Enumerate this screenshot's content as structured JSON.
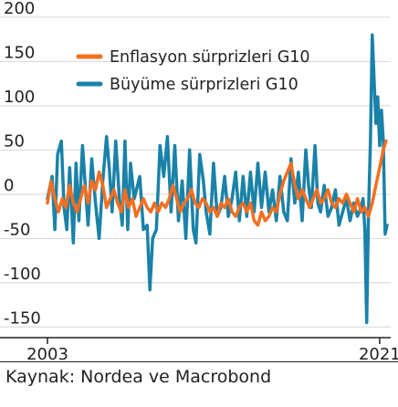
{
  "chart_data": {
    "type": "line",
    "title": "",
    "xlabel": "",
    "ylabel": "",
    "x_range": [
      2003.0,
      2021.6
    ],
    "x_ticks": [
      "2003",
      "2021"
    ],
    "ylim": [
      -160,
      205
    ],
    "y_ticks": [
      "200",
      "150",
      "100",
      "50",
      "0",
      "-50",
      "-100",
      "-150"
    ],
    "grid": "horizontal",
    "legend_position": "top-center",
    "colors": {
      "Enflasyon sürprizleri G10": "#f36f21",
      "Büyüme sürprizleri G10": "#1a82a8"
    },
    "series": [
      {
        "name": "Büyüme sürprizleri G10",
        "points": [
          [
            2003.0,
            -5
          ],
          [
            2003.25,
            20
          ],
          [
            2003.4,
            -40
          ],
          [
            2003.55,
            45
          ],
          [
            2003.75,
            60
          ],
          [
            2003.9,
            -15
          ],
          [
            2004.05,
            -40
          ],
          [
            2004.2,
            30
          ],
          [
            2004.4,
            -55
          ],
          [
            2004.55,
            35
          ],
          [
            2004.7,
            -30
          ],
          [
            2004.9,
            55
          ],
          [
            2005.05,
            10
          ],
          [
            2005.2,
            -35
          ],
          [
            2005.4,
            40
          ],
          [
            2005.6,
            -10
          ],
          [
            2005.8,
            -50
          ],
          [
            2006.0,
            15
          ],
          [
            2006.2,
            65
          ],
          [
            2006.35,
            30
          ],
          [
            2006.5,
            -20
          ],
          [
            2006.7,
            60
          ],
          [
            2006.9,
            -5
          ],
          [
            2007.05,
            -35
          ],
          [
            2007.2,
            60
          ],
          [
            2007.35,
            -40
          ],
          [
            2007.5,
            35
          ],
          [
            2007.7,
            -5
          ],
          [
            2008.0,
            20
          ],
          [
            2008.2,
            -40
          ],
          [
            2008.4,
            -35
          ],
          [
            2008.55,
            -108
          ],
          [
            2008.7,
            -50
          ],
          [
            2008.9,
            -40
          ],
          [
            2009.1,
            55
          ],
          [
            2009.3,
            20
          ],
          [
            2009.5,
            65
          ],
          [
            2009.7,
            -20
          ],
          [
            2009.9,
            55
          ],
          [
            2010.1,
            -30
          ],
          [
            2010.3,
            15
          ],
          [
            2010.5,
            -50
          ],
          [
            2010.7,
            50
          ],
          [
            2010.9,
            -40
          ],
          [
            2011.05,
            -55
          ],
          [
            2011.25,
            45
          ],
          [
            2011.45,
            15
          ],
          [
            2011.6,
            -20
          ],
          [
            2011.8,
            -45
          ],
          [
            2012.0,
            35
          ],
          [
            2012.2,
            -25
          ],
          [
            2012.4,
            -15
          ],
          [
            2012.6,
            20
          ],
          [
            2012.8,
            -25
          ],
          [
            2013.0,
            -5
          ],
          [
            2013.2,
            25
          ],
          [
            2013.4,
            -30
          ],
          [
            2013.6,
            20
          ],
          [
            2013.8,
            -25
          ],
          [
            2014.0,
            25
          ],
          [
            2014.2,
            -20
          ],
          [
            2014.4,
            35
          ],
          [
            2014.6,
            -15
          ],
          [
            2014.8,
            25
          ],
          [
            2015.0,
            -20
          ],
          [
            2015.2,
            5
          ],
          [
            2015.4,
            -30
          ],
          [
            2015.6,
            20
          ],
          [
            2015.8,
            -20
          ],
          [
            2016.0,
            -30
          ],
          [
            2016.2,
            40
          ],
          [
            2016.4,
            -10
          ],
          [
            2016.6,
            25
          ],
          [
            2016.8,
            -30
          ],
          [
            2017.0,
            50
          ],
          [
            2017.15,
            10
          ],
          [
            2017.3,
            -15
          ],
          [
            2017.5,
            55
          ],
          [
            2017.65,
            -10
          ],
          [
            2017.8,
            -20
          ],
          [
            2018.0,
            10
          ],
          [
            2018.2,
            -25
          ],
          [
            2018.4,
            -15
          ],
          [
            2018.6,
            5
          ],
          [
            2018.8,
            -35
          ],
          [
            2019.0,
            -20
          ],
          [
            2019.2,
            -5
          ],
          [
            2019.4,
            -30
          ],
          [
            2019.6,
            -10
          ],
          [
            2019.8,
            -25
          ],
          [
            2020.0,
            -15
          ],
          [
            2020.1,
            -5
          ],
          [
            2020.2,
            -40
          ],
          [
            2020.3,
            -145
          ],
          [
            2020.4,
            -20
          ],
          [
            2020.5,
            60
          ],
          [
            2020.6,
            180
          ],
          [
            2020.7,
            130
          ],
          [
            2020.8,
            80
          ],
          [
            2020.9,
            110
          ],
          [
            2021.0,
            55
          ],
          [
            2021.1,
            95
          ],
          [
            2021.2,
            60
          ],
          [
            2021.3,
            -45
          ],
          [
            2021.4,
            -35
          ]
        ]
      },
      {
        "name": "Enflasyon sürprizleri G10",
        "points": [
          [
            2003.0,
            -10
          ],
          [
            2003.2,
            15
          ],
          [
            2003.4,
            -5
          ],
          [
            2003.6,
            -20
          ],
          [
            2003.8,
            -5
          ],
          [
            2004.0,
            -15
          ],
          [
            2004.2,
            10
          ],
          [
            2004.4,
            -10
          ],
          [
            2004.6,
            -20
          ],
          [
            2004.8,
            -5
          ],
          [
            2005.0,
            10
          ],
          [
            2005.2,
            -10
          ],
          [
            2005.4,
            15
          ],
          [
            2005.6,
            5
          ],
          [
            2005.8,
            25
          ],
          [
            2006.0,
            10
          ],
          [
            2006.2,
            -15
          ],
          [
            2006.4,
            -5
          ],
          [
            2006.6,
            5
          ],
          [
            2006.8,
            -10
          ],
          [
            2007.0,
            -20
          ],
          [
            2007.2,
            5
          ],
          [
            2007.4,
            -15
          ],
          [
            2007.6,
            -5
          ],
          [
            2007.8,
            -25
          ],
          [
            2008.0,
            -15
          ],
          [
            2008.2,
            -5
          ],
          [
            2008.4,
            -15
          ],
          [
            2008.6,
            -20
          ],
          [
            2008.8,
            -10
          ],
          [
            2009.0,
            -20
          ],
          [
            2009.2,
            -10
          ],
          [
            2009.4,
            -15
          ],
          [
            2009.6,
            -5
          ],
          [
            2009.8,
            10
          ],
          [
            2010.0,
            -5
          ],
          [
            2010.2,
            -20
          ],
          [
            2010.4,
            -10
          ],
          [
            2010.6,
            -5
          ],
          [
            2010.8,
            5
          ],
          [
            2011.0,
            -10
          ],
          [
            2011.2,
            -15
          ],
          [
            2011.4,
            -5
          ],
          [
            2011.6,
            -10
          ],
          [
            2011.8,
            -20
          ],
          [
            2012.0,
            -15
          ],
          [
            2012.2,
            -25
          ],
          [
            2012.4,
            -10
          ],
          [
            2012.6,
            -15
          ],
          [
            2012.8,
            -5
          ],
          [
            2013.0,
            -20
          ],
          [
            2013.2,
            -25
          ],
          [
            2013.4,
            -15
          ],
          [
            2013.6,
            -10
          ],
          [
            2013.8,
            -20
          ],
          [
            2014.0,
            -10
          ],
          [
            2014.2,
            -30
          ],
          [
            2014.4,
            -35
          ],
          [
            2014.6,
            -20
          ],
          [
            2014.8,
            -30
          ],
          [
            2015.0,
            -25
          ],
          [
            2015.2,
            -15
          ],
          [
            2015.4,
            -20
          ],
          [
            2015.6,
            0
          ],
          [
            2015.8,
            15
          ],
          [
            2016.0,
            25
          ],
          [
            2016.2,
            35
          ],
          [
            2016.4,
            10
          ],
          [
            2016.6,
            -5
          ],
          [
            2016.8,
            5
          ],
          [
            2017.0,
            -5
          ],
          [
            2017.2,
            -15
          ],
          [
            2017.4,
            -5
          ],
          [
            2017.6,
            5
          ],
          [
            2017.8,
            -10
          ],
          [
            2018.0,
            -5
          ],
          [
            2018.2,
            5
          ],
          [
            2018.4,
            -10
          ],
          [
            2018.6,
            -15
          ],
          [
            2018.8,
            -5
          ],
          [
            2019.0,
            -10
          ],
          [
            2019.2,
            0
          ],
          [
            2019.4,
            -10
          ],
          [
            2019.6,
            -20
          ],
          [
            2019.8,
            -5
          ],
          [
            2020.0,
            -20
          ],
          [
            2020.2,
            -15
          ],
          [
            2020.4,
            -25
          ],
          [
            2020.6,
            -10
          ],
          [
            2020.8,
            10
          ],
          [
            2021.0,
            30
          ],
          [
            2021.2,
            50
          ],
          [
            2021.35,
            60
          ]
        ]
      }
    ]
  },
  "source": "Kaynak: Nordea ve Macrobond"
}
